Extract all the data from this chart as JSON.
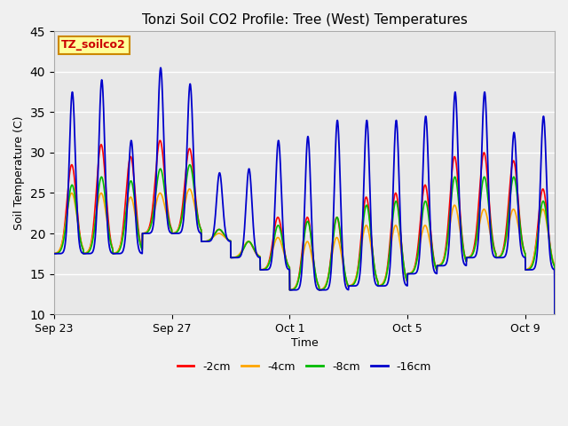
{
  "title": "Tonzi Soil CO2 Profile: Tree (West) Temperatures",
  "xlabel": "Time",
  "ylabel": "Soil Temperature (C)",
  "ylim": [
    10,
    45
  ],
  "yticks": [
    10,
    15,
    20,
    25,
    30,
    35,
    40,
    45
  ],
  "x_tick_labels": [
    "Sep 23",
    "Sep 27",
    "Oct 1",
    "Oct 5",
    "Oct 9"
  ],
  "x_tick_positions": [
    0,
    4,
    8,
    12,
    16
  ],
  "colors": {
    "-2cm": "#ff0000",
    "-4cm": "#ffa500",
    "-8cm": "#00bb00",
    "-16cm": "#0000cc"
  },
  "annotation_text": "TZ_soilco2",
  "annotation_bg": "#ffff99",
  "annotation_border": "#cc8800",
  "plot_bg": "#e8e8e8",
  "fig_bg": "#f0f0f0",
  "grid_color": "#ffffff"
}
